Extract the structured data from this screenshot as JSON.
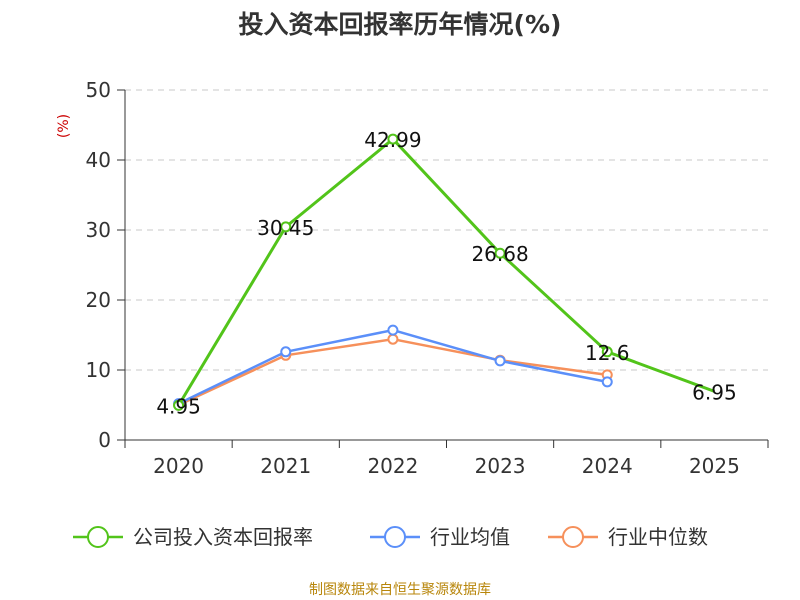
{
  "chart_data": {
    "type": "line",
    "title": "投入资本回报率历年情况(%)",
    "ylabel": "(%)",
    "ylim": [
      0,
      50
    ],
    "yticks": [
      0,
      10,
      20,
      30,
      40,
      50
    ],
    "categories": [
      "2020",
      "2021",
      "2022",
      "2023",
      "2024",
      "2025"
    ],
    "series": [
      {
        "name": "公司投入资本回报率",
        "color": "#52c41a",
        "values": [
          4.95,
          30.45,
          42.99,
          26.68,
          12.6,
          6.95
        ],
        "labels": [
          "4.95",
          "30.45",
          "42.99",
          "26.68",
          "12.6",
          "6.95"
        ],
        "marker_last": false
      },
      {
        "name": "行业均值",
        "color": "#5b8ff9",
        "values": [
          5.2,
          12.6,
          15.7,
          11.3,
          8.3,
          null
        ]
      },
      {
        "name": "行业中位数",
        "color": "#f6905b",
        "values": [
          5.0,
          12.1,
          14.4,
          11.4,
          9.3,
          null
        ]
      }
    ],
    "grid": true,
    "legend_position": "bottom"
  },
  "source": "制图数据来自恒生聚源数据库"
}
